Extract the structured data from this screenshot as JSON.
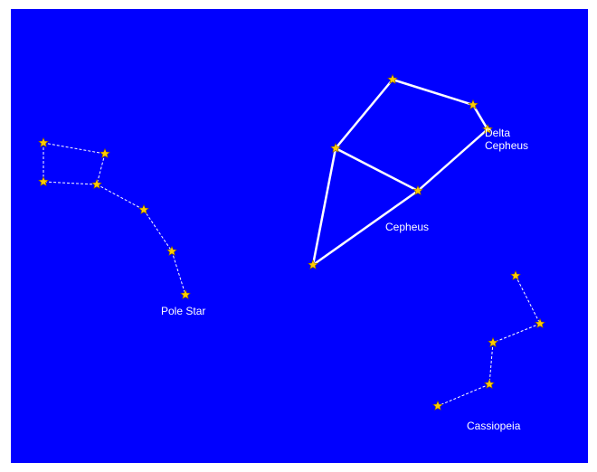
{
  "labels": {
    "pole_star": "Pole Star",
    "cepheus": "Cepheus",
    "delta_cepheus": "Delta Cepheus",
    "cassiopeia": "Cassiopeia"
  }
}
